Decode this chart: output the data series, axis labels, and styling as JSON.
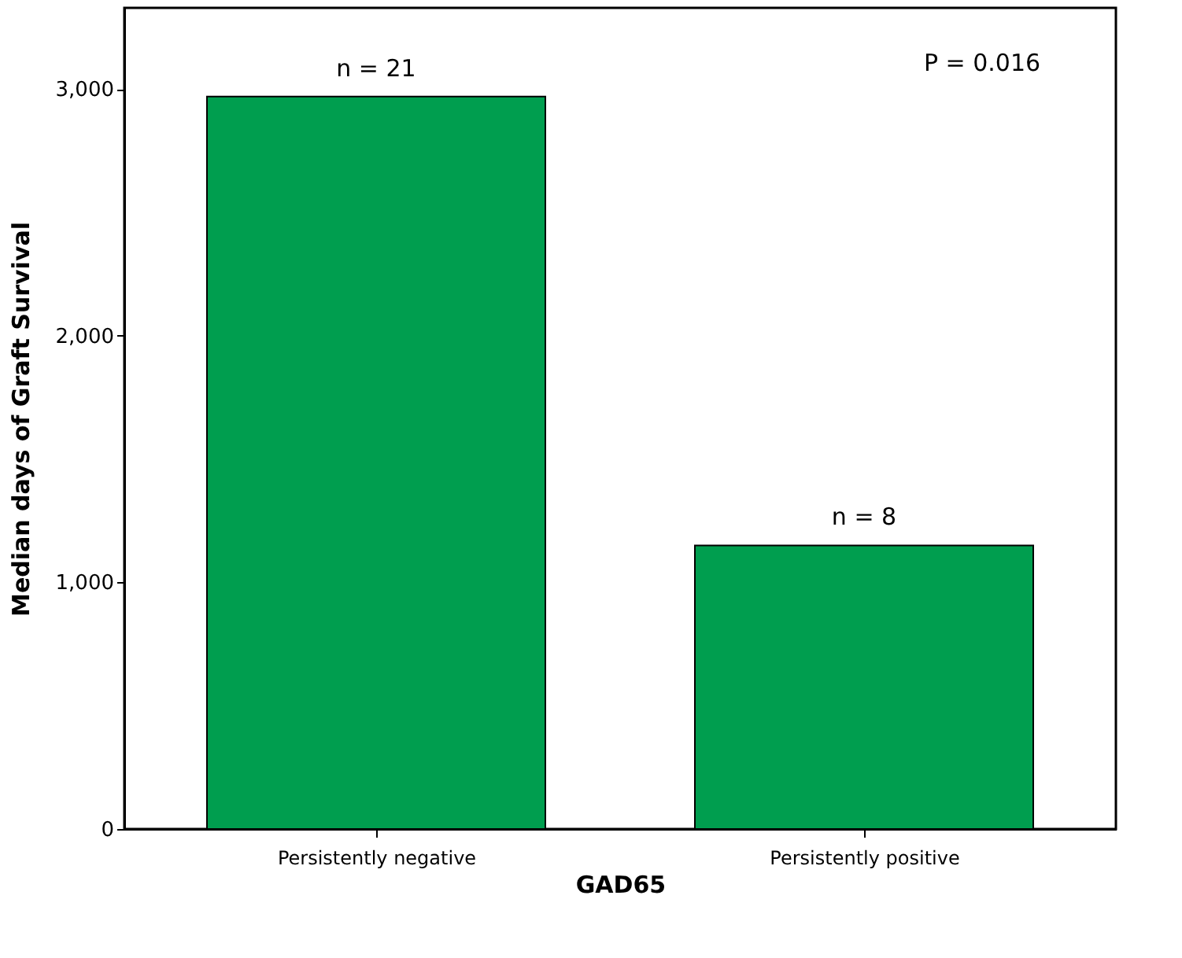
{
  "chart_data": {
    "type": "bar",
    "categories": [
      "Persistently negative",
      "Persistently positive"
    ],
    "values": [
      2970,
      1150
    ],
    "color": "#009e4f",
    "xlabel": "GAD65",
    "ylabel": "Median days of Graft Survival",
    "ylim": [
      0,
      3330
    ],
    "yticks": [
      0,
      {
        "value": 1000,
        "label": "1,000"
      },
      {
        "value": 2000,
        "label": "2,000"
      },
      {
        "value": 3000,
        "label": "3,000"
      }
    ],
    "grid": false,
    "annotations": [
      {
        "text": "n = 21",
        "x": "Persistently negative",
        "y": 2970
      },
      {
        "text": "n = 8",
        "x": "Persistently positive",
        "y": 1150
      },
      "P = 0.016"
    ]
  }
}
